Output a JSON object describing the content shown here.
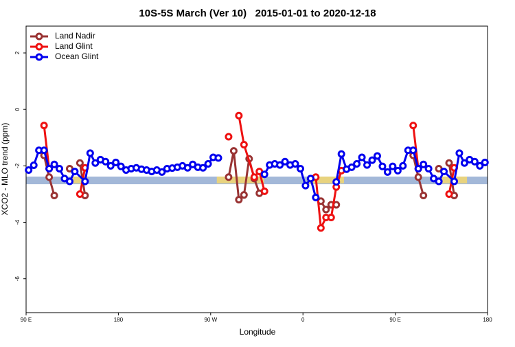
{
  "chart_data": {
    "type": "line",
    "title": "10S-5S March (Ver 10)   2015-01-01 to 2020-12-18",
    "x_label": "Longitude",
    "y_label": "XCO2 - MLO trend (ppm)",
    "xlim": [
      90,
      540
    ],
    "ylim": [
      -7.2,
      2.95
    ],
    "xticks": [
      {
        "value": 90,
        "label": "90 E"
      },
      {
        "value": 180,
        "label": "180"
      },
      {
        "value": 270,
        "label": "90 W"
      },
      {
        "value": 360,
        "label": "0"
      },
      {
        "value": 450,
        "label": "90 E"
      },
      {
        "value": 540,
        "label": "180"
      }
    ],
    "yticks": [
      2,
      0,
      -2,
      -4,
      -6
    ],
    "reference_band": {
      "range": [
        -2.65,
        -2.38
      ],
      "color": "#a3b8d8"
    },
    "highlight_x_ranges": {
      "color": "#f5d76e",
      "range_y": [
        -2.62,
        -2.38
      ],
      "ranges": [
        [
          135,
          150
        ],
        [
          276,
          322
        ],
        [
          364,
          400
        ],
        [
          493,
          520
        ]
      ]
    },
    "legend": "top-left",
    "series": [
      {
        "name": "Land Nadir",
        "color": "#993333",
        "x": [
          107.5,
          112.5,
          117.5,
          122.5,
          132.5,
          137.5,
          142.5,
          147.5,
          152.5,
          287.5,
          292.5,
          297.5,
          302.5,
          307.5,
          312.5,
          317.5,
          322.5,
          377.5,
          382.5,
          387.5,
          392.5,
          397.5,
          467.5,
          472.5,
          477.5,
          482.5,
          492.5,
          497.5,
          502.5,
          507.5
        ],
        "values": [
          -1.63,
          -2.4,
          -3.05,
          null,
          -2.1,
          null,
          -1.9,
          -3.05,
          null,
          -2.4,
          -1.47,
          -3.2,
          -3.03,
          -1.75,
          -2.45,
          -2.97,
          null,
          -3.25,
          -3.55,
          -3.38,
          -3.38,
          null,
          -1.63,
          -2.4,
          -3.05,
          null,
          -2.1,
          null,
          -1.9,
          -3.05
        ]
      },
      {
        "name": "Land Glint",
        "color": "#ee1111",
        "x": [
          107.5,
          112.5,
          117.5,
          142.5,
          147.5,
          152.5,
          287.5,
          292.5,
          297.5,
          302.5,
          312.5,
          317.5,
          322.5,
          327.5,
          372.5,
          377.5,
          382.5,
          387.5,
          392.5,
          397.5,
          402.5,
          467.5,
          472.5,
          477.5,
          502.5,
          507.5
        ],
        "values": [
          -0.57,
          -2.1,
          null,
          -3.0,
          -2.07,
          null,
          -0.97,
          null,
          -0.22,
          -1.25,
          -2.4,
          -2.2,
          -2.9,
          null,
          -2.4,
          -4.2,
          -3.83,
          -3.83,
          -2.75,
          -2.17,
          null,
          -0.57,
          -2.1,
          null,
          -3.0,
          -2.07
        ]
      },
      {
        "name": "Ocean Glint",
        "color": "#0000ee",
        "x": [
          92.5,
          97.5,
          102.5,
          107.5,
          112.5,
          117.5,
          122.5,
          127.5,
          132.5,
          137.5,
          147.5,
          152.5,
          157.5,
          162.5,
          167.5,
          172.5,
          177.5,
          182.5,
          187.5,
          192.5,
          197.5,
          202.5,
          207.5,
          212.5,
          217.5,
          222.5,
          227.5,
          232.5,
          237.5,
          242.5,
          247.5,
          252.5,
          257.5,
          262.5,
          267.5,
          272.5,
          277.5,
          282.5,
          322.5,
          327.5,
          332.5,
          337.5,
          342.5,
          347.5,
          352.5,
          357.5,
          362.5,
          367.5,
          372.5,
          377.5,
          392.5,
          397.5,
          402.5,
          407.5,
          412.5,
          417.5,
          422.5,
          427.5,
          432.5,
          437.5,
          442.5,
          447.5,
          452.5,
          457.5,
          462.5,
          467.5,
          472.5,
          477.5,
          482.5,
          487.5,
          492.5,
          497.5,
          507.5,
          512.5,
          517.5,
          522.5,
          527.5,
          532.5,
          537.5
        ],
        "values": [
          -2.15,
          -1.98,
          -1.45,
          -1.45,
          -2.1,
          -1.95,
          -2.1,
          -2.45,
          -2.55,
          -2.2,
          -2.55,
          -1.55,
          -1.9,
          -1.78,
          -1.85,
          -2.0,
          -1.88,
          -2.02,
          -2.15,
          -2.1,
          -2.07,
          -2.12,
          -2.15,
          -2.2,
          -2.15,
          -2.22,
          -2.1,
          -2.08,
          -2.05,
          -2.0,
          -2.07,
          -1.95,
          -2.05,
          -2.07,
          -1.93,
          -1.7,
          -1.72,
          null,
          -2.3,
          -1.97,
          -1.93,
          -1.97,
          -1.85,
          -1.97,
          -1.93,
          -2.1,
          -2.7,
          -2.45,
          -3.12,
          null,
          -2.57,
          -1.58,
          -2.12,
          -2.05,
          -1.93,
          -1.7,
          -1.97,
          -1.8,
          -1.65,
          -2.02,
          -2.22,
          -2.02,
          -2.17,
          -2.0,
          -1.45,
          -1.45,
          -2.1,
          -1.95,
          -2.1,
          -2.45,
          -2.55,
          -2.2,
          -2.55,
          -1.55,
          -1.9,
          -1.78,
          -1.85,
          -2.0,
          -1.88
        ]
      }
    ]
  }
}
